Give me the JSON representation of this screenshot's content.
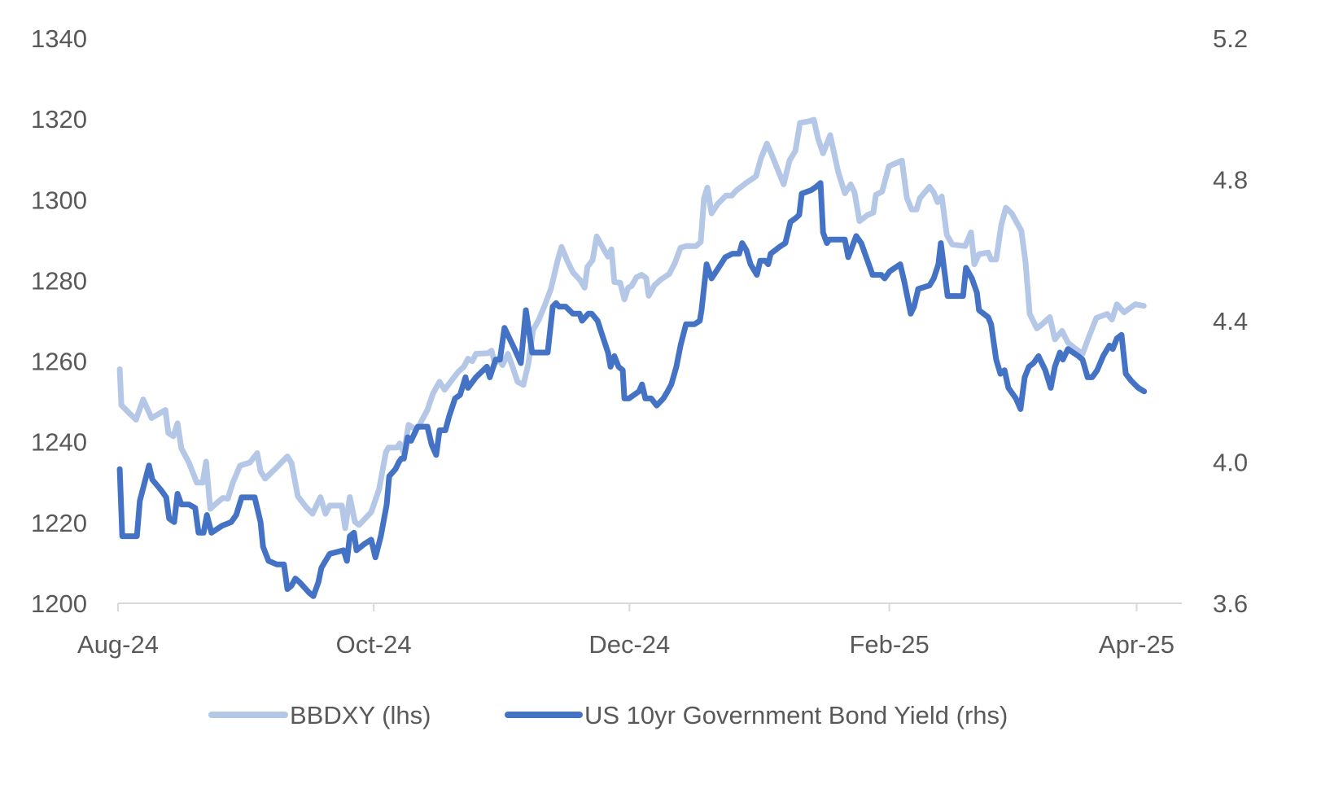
{
  "chart_data": {
    "type": "line",
    "title": "",
    "x_unit": "days since 1 Aug 2024",
    "x_ticks": [
      {
        "label": "Aug-24",
        "day": 0
      },
      {
        "label": "Oct-24",
        "day": 61
      },
      {
        "label": "Dec-24",
        "day": 122
      },
      {
        "label": "Feb-25",
        "day": 184
      },
      {
        "label": "Apr-25",
        "day": 243
      }
    ],
    "y_left": {
      "label": "",
      "range": [
        1200,
        1340
      ],
      "ticks": [
        "1200",
        "1220",
        "1240",
        "1260",
        "1280",
        "1300",
        "1320",
        "1340"
      ]
    },
    "y_right": {
      "label": "",
      "range": [
        3.6,
        5.2
      ],
      "ticks": [
        "3.6",
        "4.0",
        "4.4",
        "4.8",
        "5.2"
      ]
    },
    "grid": false,
    "legend_position": "bottom",
    "series": [
      {
        "name": "BBDXY (lhs)",
        "axis": "left",
        "color": "#b4c7e7",
        "x": [
          0.4,
          0.8,
          2.9,
          4.3,
          6.0,
          8.0,
          11.3,
          12.0,
          13.2,
          14.2,
          15.1,
          16.9,
          18.8,
          20.2,
          21.0,
          22.0,
          23.5,
          25.0,
          26.2,
          27.4,
          29.1,
          31.5,
          33.2,
          34.0,
          35.1,
          37.5,
          40.4,
          41.4,
          42.9,
          44.9,
          46.4,
          48.3,
          49.5,
          50.5,
          53.4,
          54.2,
          55.3,
          56.5,
          57.5,
          60.4,
          62.3,
          63.9,
          64.5,
          66.6,
          67.2,
          68.2,
          69.3,
          70.9,
          71.7,
          72.4,
          73.8,
          75.1,
          76.7,
          77.9,
          79.2,
          81.2,
          82.5,
          83.5,
          84.5,
          85.4,
          88.3,
          89.1,
          89.9,
          90.7,
          91.7,
          93.0,
          94.2,
          95.3,
          96.7,
          97.9,
          99.0,
          100.4,
          101.9,
          103.3,
          104.9,
          105.8,
          107.2,
          108.5,
          110.3,
          111.3,
          112.0,
          113.2,
          114.2,
          116.1,
          116.9,
          117.7,
          118.4,
          119.8,
          120.8,
          121.7,
          122.5,
          123.7,
          124.9,
          126.0,
          126.6,
          128.0,
          129.5,
          131.5,
          132.8,
          134.2,
          135.5,
          137.9,
          139.0,
          139.8,
          140.6,
          141.6,
          143.1,
          145.0,
          146.4,
          147.4,
          149.9,
          152.2,
          153.4,
          154.8,
          155.9,
          158.8,
          160.2,
          161.6,
          162.7,
          164.7,
          166.0,
          167.0,
          168.2,
          169.9,
          171.8,
          173.4,
          174.8,
          175.7,
          176.9,
          178.8,
          180.2,
          180.8,
          182.3,
          183.9,
          187.0,
          188.2,
          189.3,
          190.5,
          191.3,
          193.6,
          194.6,
          195.5,
          196.5,
          197.7,
          199.0,
          202.1,
          203.5,
          204.3,
          205.4,
          207.6,
          208.3,
          209.5,
          210.7,
          211.8,
          213.2,
          215.5,
          216.5,
          217.5,
          219.2,
          220.4,
          222.3,
          223.5,
          225.2,
          226.6,
          228.5,
          230.1,
          231.5,
          233.4,
          236.0,
          237.1,
          238.3,
          240.0,
          242.7,
          244.7
        ],
        "values": [
          1258.0,
          1249.1,
          1246.9,
          1245.5,
          1250.5,
          1245.9,
          1247.9,
          1242.2,
          1241.4,
          1244.6,
          1238.4,
          1234.9,
          1229.9,
          1229.9,
          1235.1,
          1223.4,
          1224.8,
          1226.1,
          1225.9,
          1229.9,
          1234.1,
          1234.9,
          1237.2,
          1232.7,
          1230.9,
          1233.3,
          1236.4,
          1234.7,
          1226.5,
          1223.8,
          1222.2,
          1226.3,
          1222.2,
          1224.2,
          1224.2,
          1218.6,
          1226.3,
          1220.2,
          1219.4,
          1222.6,
          1228.3,
          1237.4,
          1238.6,
          1238.6,
          1239.6,
          1237.2,
          1244.2,
          1243.2,
          1243.6,
          1245.2,
          1247.9,
          1251.9,
          1254.9,
          1252.9,
          1254.7,
          1257.4,
          1258.6,
          1260.6,
          1260.0,
          1261.8,
          1262.0,
          1262.6,
          1259.4,
          1260.6,
          1259.0,
          1261.8,
          1258.4,
          1254.9,
          1254.1,
          1259.4,
          1267.7,
          1270.3,
          1274.1,
          1278.0,
          1285.0,
          1288.3,
          1284.8,
          1282.0,
          1280.0,
          1278.2,
          1283.4,
          1285.0,
          1290.9,
          1287.3,
          1285.9,
          1287.7,
          1279.6,
          1279.4,
          1275.3,
          1278.2,
          1278.6,
          1280.8,
          1281.4,
          1280.6,
          1276.2,
          1278.8,
          1280.2,
          1281.6,
          1284.2,
          1288.1,
          1288.5,
          1288.5,
          1289.5,
          1300.4,
          1303.0,
          1296.6,
          1299.0,
          1301.0,
          1301.0,
          1302.2,
          1304.2,
          1305.8,
          1310.3,
          1313.9,
          1311.3,
          1303.8,
          1309.7,
          1312.1,
          1319.0,
          1319.4,
          1319.8,
          1315.1,
          1311.5,
          1316.0,
          1306.9,
          1301.6,
          1303.8,
          1301.8,
          1294.7,
          1296.2,
          1296.8,
          1301.2,
          1302.0,
          1308.3,
          1309.7,
          1300.4,
          1297.6,
          1297.6,
          1300.4,
          1303.2,
          1301.8,
          1299.4,
          1300.8,
          1291.3,
          1288.9,
          1288.5,
          1291.9,
          1284.0,
          1286.5,
          1286.9,
          1285.2,
          1285.2,
          1293.7,
          1298.0,
          1296.6,
          1292.3,
          1284.4,
          1271.7,
          1268.1,
          1269.1,
          1270.9,
          1265.4,
          1267.5,
          1264.6,
          1263.0,
          1261.8,
          1265.7,
          1270.7,
          1271.7,
          1270.3,
          1274.1,
          1272.1,
          1274.1,
          1273.7
        ]
      },
      {
        "name": "US 10yr Government Bond Yield (rhs)",
        "axis": "right",
        "color": "#4472c4",
        "x": [
          0.4,
          1.0,
          2.9,
          4.5,
          5.2,
          7.4,
          8.2,
          10.3,
          11.5,
          12.2,
          13.4,
          14.2,
          15.1,
          16.9,
          18.4,
          19.2,
          20.4,
          21.2,
          22.3,
          24.9,
          27.0,
          28.2,
          29.5,
          32.6,
          34.0,
          34.6,
          35.9,
          37.9,
          39.6,
          40.4,
          41.4,
          42.3,
          43.3,
          45.6,
          46.6,
          47.8,
          48.5,
          49.5,
          50.5,
          53.8,
          54.6,
          55.3,
          56.3,
          56.9,
          59.0,
          60.4,
          61.4,
          62.7,
          64.1,
          64.7,
          66.2,
          67.0,
          67.6,
          68.2,
          69.1,
          69.9,
          71.5,
          73.8,
          74.8,
          75.9,
          76.7,
          78.1,
          79.0,
          80.4,
          81.6,
          82.9,
          83.5,
          85.4,
          88.0,
          88.7,
          90.1,
          91.1,
          92.2,
          94.6,
          96.1,
          97.3,
          98.8,
          100.4,
          102.5,
          103.7,
          104.5,
          105.2,
          106.8,
          108.5,
          110.1,
          110.7,
          112.2,
          113.0,
          114.4,
          115.5,
          116.9,
          117.5,
          118.4,
          119.4,
          120.4,
          120.8,
          121.9,
          124.3,
          125.0,
          125.8,
          127.2,
          128.5,
          130.1,
          131.1,
          132.0,
          133.2,
          134.2,
          135.5,
          137.5,
          138.8,
          139.2,
          140.4,
          141.6,
          142.7,
          144.9,
          146.6,
          148.2,
          148.9,
          149.9,
          150.9,
          152.4,
          153.2,
          154.4,
          155.1,
          155.7,
          157.9,
          159.2,
          160.4,
          161.6,
          162.5,
          163.1,
          165.4,
          166.6,
          167.6,
          168.2,
          169.1,
          169.7,
          173.4,
          174.2,
          176.1,
          177.3,
          180.0,
          182.1,
          182.9,
          184.1,
          186.6,
          187.6,
          189.1,
          189.9,
          190.9,
          193.6,
          194.6,
          195.7,
          196.3,
          197.9,
          201.6,
          202.3,
          203.7,
          204.9,
          205.4,
          207.6,
          208.3,
          209.5,
          210.5,
          211.5,
          212.4,
          214.2,
          215.3,
          216.3,
          217.3,
          218.4,
          219.6,
          221.2,
          222.5,
          223.5,
          224.7,
          225.4,
          226.6,
          229.1,
          230.1,
          231.3,
          232.4,
          233.6,
          235.0,
          236.5,
          237.3,
          238.3,
          239.4,
          240.4,
          241.7,
          243.4,
          244.8
        ],
        "values": [
          3.98,
          3.79,
          3.79,
          3.79,
          3.89,
          3.99,
          3.95,
          3.92,
          3.9,
          3.84,
          3.83,
          3.91,
          3.88,
          3.88,
          3.87,
          3.8,
          3.8,
          3.85,
          3.8,
          3.82,
          3.83,
          3.85,
          3.9,
          3.9,
          3.83,
          3.76,
          3.72,
          3.71,
          3.71,
          3.64,
          3.65,
          3.67,
          3.66,
          3.63,
          3.62,
          3.66,
          3.7,
          3.72,
          3.74,
          3.75,
          3.72,
          3.79,
          3.8,
          3.75,
          3.77,
          3.78,
          3.73,
          3.79,
          3.88,
          3.96,
          3.98,
          4.0,
          4.01,
          4.01,
          4.07,
          4.06,
          4.1,
          4.1,
          4.05,
          4.02,
          4.09,
          4.09,
          4.13,
          4.18,
          4.19,
          4.24,
          4.21,
          4.24,
          4.27,
          4.24,
          4.29,
          4.29,
          4.38,
          4.32,
          4.28,
          4.43,
          4.31,
          4.31,
          4.31,
          4.44,
          4.45,
          4.44,
          4.44,
          4.42,
          4.42,
          4.4,
          4.42,
          4.42,
          4.4,
          4.36,
          4.31,
          4.27,
          4.3,
          4.27,
          4.26,
          4.18,
          4.18,
          4.2,
          4.22,
          4.18,
          4.18,
          4.16,
          4.18,
          4.2,
          4.22,
          4.27,
          4.33,
          4.39,
          4.39,
          4.4,
          4.43,
          4.56,
          4.52,
          4.54,
          4.58,
          4.59,
          4.59,
          4.62,
          4.6,
          4.56,
          4.53,
          4.57,
          4.57,
          4.56,
          4.59,
          4.61,
          4.62,
          4.68,
          4.69,
          4.7,
          4.76,
          4.77,
          4.78,
          4.79,
          4.65,
          4.62,
          4.63,
          4.63,
          4.58,
          4.64,
          4.62,
          4.53,
          4.53,
          4.52,
          4.54,
          4.56,
          4.51,
          4.42,
          4.44,
          4.49,
          4.5,
          4.52,
          4.56,
          4.62,
          4.47,
          4.47,
          4.55,
          4.52,
          4.48,
          4.43,
          4.41,
          4.39,
          4.29,
          4.25,
          4.26,
          4.21,
          4.18,
          4.15,
          4.24,
          4.27,
          4.28,
          4.3,
          4.26,
          4.21,
          4.27,
          4.31,
          4.29,
          4.32,
          4.3,
          4.29,
          4.24,
          4.24,
          4.26,
          4.3,
          4.33,
          4.32,
          4.35,
          4.36,
          4.25,
          4.23,
          4.21,
          4.2
        ]
      }
    ]
  }
}
